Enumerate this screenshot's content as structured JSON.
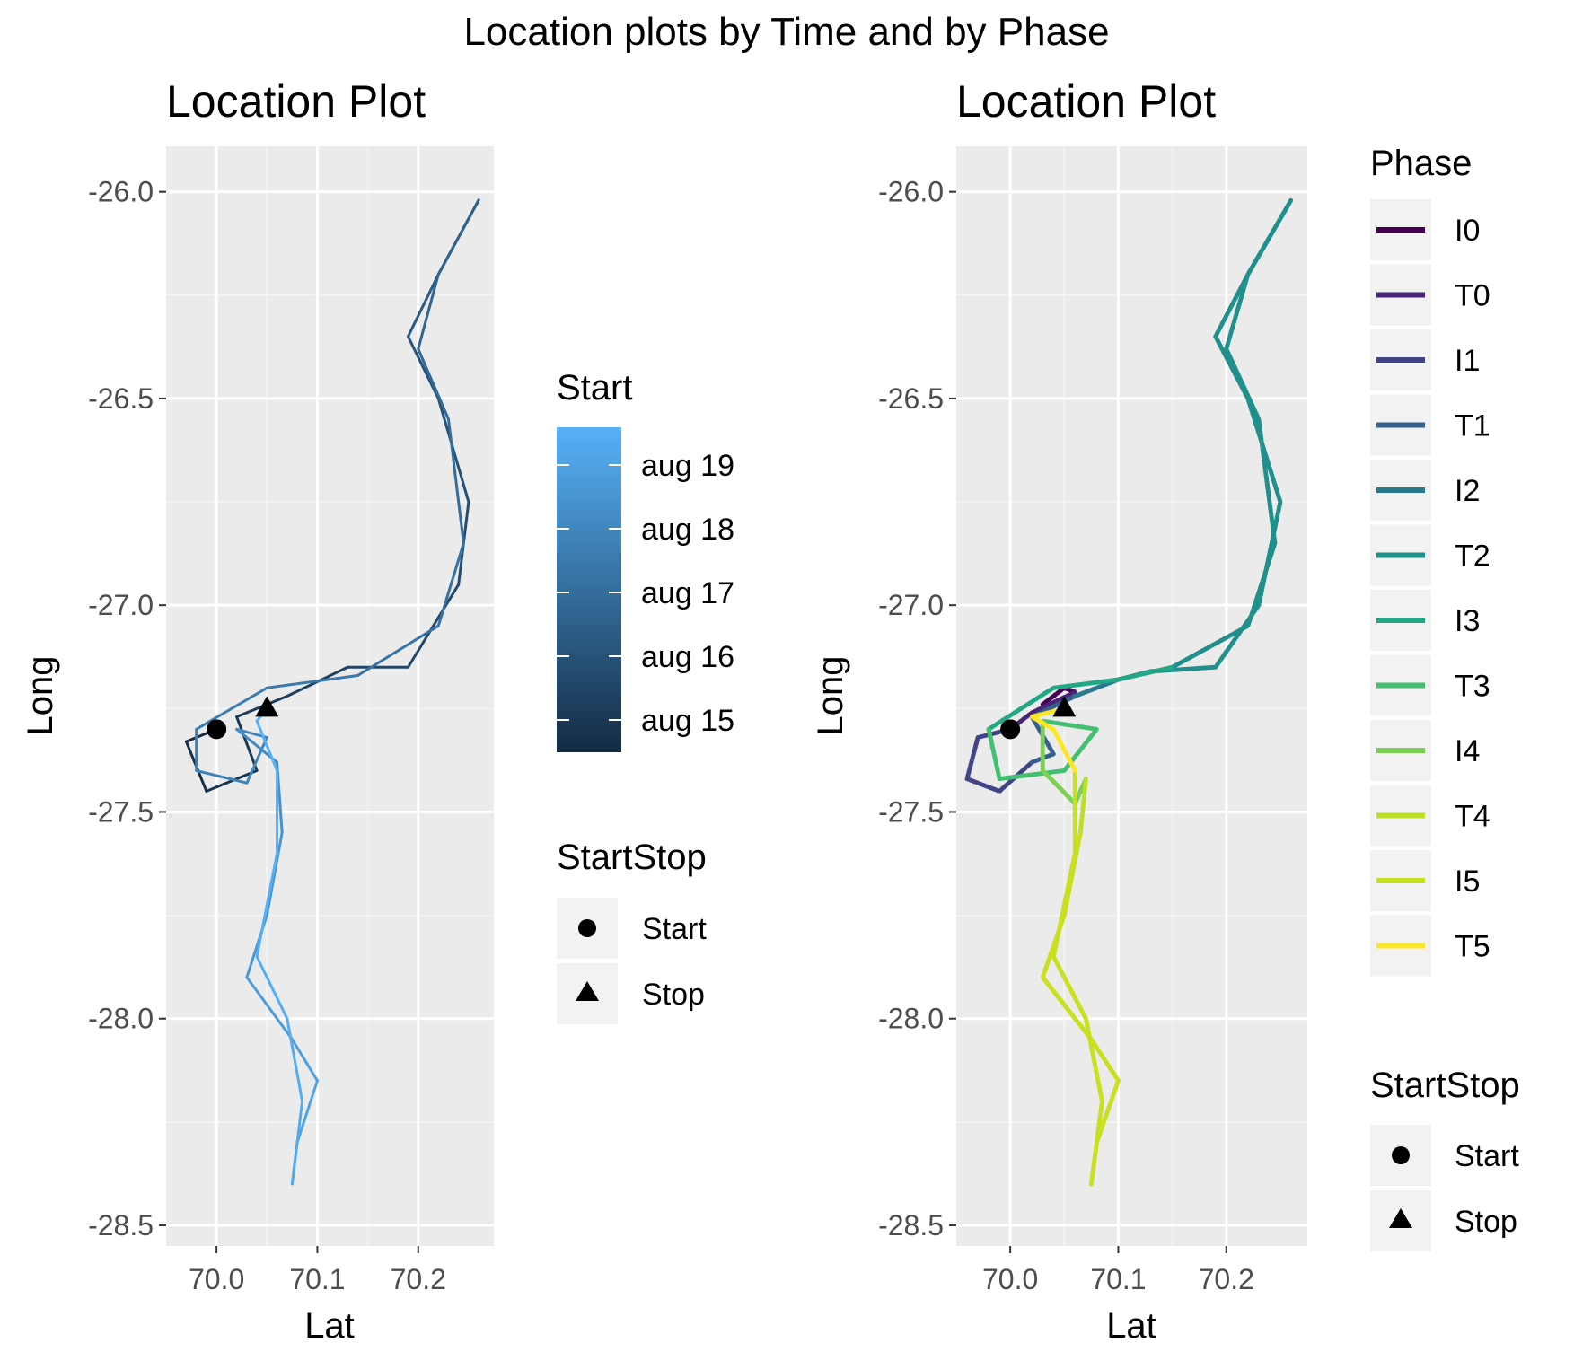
{
  "figure": {
    "title": "Location plots by Time and by Phase"
  },
  "chart_data": [
    {
      "type": "line",
      "title": "Location Plot",
      "xlabel": "Lat",
      "ylabel": "Long",
      "xlim": [
        69.95,
        70.275
      ],
      "ylim": [
        -28.55,
        -25.89
      ],
      "x_ticks": [
        70.0,
        70.1,
        70.2
      ],
      "x_tick_labels": [
        "70.0",
        "70.1",
        "70.2"
      ],
      "y_ticks": [
        -26.0,
        -26.5,
        -27.0,
        -27.5,
        -28.0,
        -28.5
      ],
      "y_tick_labels": [
        "-26.0",
        "-26.5",
        "-27.0",
        "-27.5",
        "-28.0",
        "-28.5"
      ],
      "grid": true,
      "color_by": "Start",
      "colorbar": {
        "title": "Start",
        "labels": [
          "aug 19",
          "aug 18",
          "aug 17",
          "aug 16",
          "aug 15"
        ],
        "low_color": "#132b43",
        "high_color": "#56b1f7"
      },
      "track": [
        {
          "x": 70.0,
          "y": -27.3,
          "t": 0.0
        },
        {
          "x": 69.97,
          "y": -27.33,
          "t": 0.03
        },
        {
          "x": 69.99,
          "y": -27.45,
          "t": 0.06
        },
        {
          "x": 70.04,
          "y": -27.4,
          "t": 0.09
        },
        {
          "x": 70.02,
          "y": -27.27,
          "t": 0.12
        },
        {
          "x": 70.07,
          "y": -27.22,
          "t": 0.15
        },
        {
          "x": 70.13,
          "y": -27.15,
          "t": 0.18
        },
        {
          "x": 70.19,
          "y": -27.15,
          "t": 0.21
        },
        {
          "x": 70.24,
          "y": -26.95,
          "t": 0.24
        },
        {
          "x": 70.25,
          "y": -26.75,
          "t": 0.27
        },
        {
          "x": 70.22,
          "y": -26.5,
          "t": 0.3
        },
        {
          "x": 70.19,
          "y": -26.35,
          "t": 0.33
        },
        {
          "x": 70.22,
          "y": -26.2,
          "t": 0.36
        },
        {
          "x": 70.26,
          "y": -26.02,
          "t": 0.39
        },
        {
          "x": 70.22,
          "y": -26.2,
          "t": 0.42
        },
        {
          "x": 70.2,
          "y": -26.38,
          "t": 0.45
        },
        {
          "x": 70.23,
          "y": -26.55,
          "t": 0.48
        },
        {
          "x": 70.245,
          "y": -26.85,
          "t": 0.51
        },
        {
          "x": 70.22,
          "y": -27.05,
          "t": 0.54
        },
        {
          "x": 70.14,
          "y": -27.17,
          "t": 0.57
        },
        {
          "x": 70.05,
          "y": -27.2,
          "t": 0.6
        },
        {
          "x": 69.98,
          "y": -27.3,
          "t": 0.62
        },
        {
          "x": 69.98,
          "y": -27.4,
          "t": 0.64
        },
        {
          "x": 70.03,
          "y": -27.43,
          "t": 0.66
        },
        {
          "x": 70.05,
          "y": -27.32,
          "t": 0.68
        },
        {
          "x": 70.02,
          "y": -27.3,
          "t": 0.71
        },
        {
          "x": 70.06,
          "y": -27.38,
          "t": 0.74
        },
        {
          "x": 70.065,
          "y": -27.55,
          "t": 0.77
        },
        {
          "x": 70.05,
          "y": -27.75,
          "t": 0.8
        },
        {
          "x": 70.03,
          "y": -27.9,
          "t": 0.83
        },
        {
          "x": 70.075,
          "y": -28.05,
          "t": 0.86
        },
        {
          "x": 70.1,
          "y": -28.15,
          "t": 0.89
        },
        {
          "x": 70.08,
          "y": -28.3,
          "t": 0.92
        },
        {
          "x": 70.075,
          "y": -28.4,
          "t": 0.95
        },
        {
          "x": 70.085,
          "y": -28.2,
          "t": 0.96
        },
        {
          "x": 70.07,
          "y": -28.0,
          "t": 0.97
        },
        {
          "x": 70.04,
          "y": -27.85,
          "t": 0.98
        },
        {
          "x": 70.06,
          "y": -27.6,
          "t": 0.985
        },
        {
          "x": 70.06,
          "y": -27.4,
          "t": 0.99
        },
        {
          "x": 70.04,
          "y": -27.28,
          "t": 0.995
        },
        {
          "x": 70.05,
          "y": -27.25,
          "t": 1.0
        }
      ],
      "markers": [
        {
          "label": "Start",
          "shape": "circle",
          "x": 70.0,
          "y": -27.3
        },
        {
          "label": "Stop",
          "shape": "triangle",
          "x": 70.05,
          "y": -27.25
        }
      ],
      "legend": {
        "title": "StartStop",
        "items": [
          "Start",
          "Stop"
        ],
        "position": "right"
      }
    },
    {
      "type": "line",
      "title": "Location Plot",
      "xlabel": "Lat",
      "ylabel": "Long",
      "xlim": [
        69.95,
        70.275
      ],
      "ylim": [
        -28.55,
        -25.89
      ],
      "x_ticks": [
        70.0,
        70.1,
        70.2
      ],
      "x_tick_labels": [
        "70.0",
        "70.1",
        "70.2"
      ],
      "y_ticks": [
        -26.0,
        -26.5,
        -27.0,
        -27.5,
        -28.0,
        -28.5
      ],
      "y_tick_labels": [
        "-26.0",
        "-26.5",
        "-27.0",
        "-27.5",
        "-28.0",
        "-28.5"
      ],
      "grid": true,
      "color_by": "Phase",
      "phases": [
        {
          "name": "I0",
          "color": "#440154"
        },
        {
          "name": "T0",
          "color": "#482576"
        },
        {
          "name": "I1",
          "color": "#414487"
        },
        {
          "name": "T1",
          "color": "#35608d"
        },
        {
          "name": "I2",
          "color": "#2a788e"
        },
        {
          "name": "T2",
          "color": "#21908c"
        },
        {
          "name": "I3",
          "color": "#22a884"
        },
        {
          "name": "T3",
          "color": "#43bf71"
        },
        {
          "name": "I4",
          "color": "#7ad151"
        },
        {
          "name": "T4",
          "color": "#bbdf27"
        },
        {
          "name": "I5",
          "color": "#c8e020"
        },
        {
          "name": "T5",
          "color": "#fde725"
        }
      ],
      "tracks": [
        {
          "phase": "I0",
          "points": [
            [
              70.03,
              -27.24
            ],
            [
              70.05,
              -27.2
            ],
            [
              70.06,
              -27.21
            ]
          ]
        },
        {
          "phase": "T0",
          "points": [
            [
              70.06,
              -27.21
            ],
            [
              70.02,
              -27.26
            ],
            [
              70.0,
              -27.3
            ]
          ]
        },
        {
          "phase": "I1",
          "points": [
            [
              70.0,
              -27.3
            ],
            [
              69.97,
              -27.32
            ],
            [
              69.96,
              -27.42
            ],
            [
              69.99,
              -27.45
            ],
            [
              70.02,
              -27.38
            ]
          ]
        },
        {
          "phase": "T1",
          "points": [
            [
              70.02,
              -27.38
            ],
            [
              70.04,
              -27.36
            ],
            [
              70.02,
              -27.27
            ],
            [
              70.06,
              -27.22
            ]
          ]
        },
        {
          "phase": "I2",
          "points": [
            [
              70.06,
              -27.22
            ],
            [
              70.1,
              -27.18
            ],
            [
              70.13,
              -27.16
            ]
          ]
        },
        {
          "phase": "T2",
          "points": [
            [
              70.13,
              -27.16
            ],
            [
              70.19,
              -27.15
            ],
            [
              70.23,
              -27.0
            ],
            [
              70.25,
              -26.75
            ],
            [
              70.22,
              -26.5
            ],
            [
              70.19,
              -26.35
            ],
            [
              70.22,
              -26.2
            ],
            [
              70.26,
              -26.02
            ],
            [
              70.22,
              -26.2
            ],
            [
              70.2,
              -26.38
            ],
            [
              70.23,
              -26.55
            ],
            [
              70.245,
              -26.85
            ],
            [
              70.22,
              -27.05
            ],
            [
              70.15,
              -27.15
            ]
          ]
        },
        {
          "phase": "I3",
          "points": [
            [
              70.15,
              -27.15
            ],
            [
              70.1,
              -27.18
            ],
            [
              70.04,
              -27.2
            ],
            [
              69.98,
              -27.3
            ]
          ]
        },
        {
          "phase": "T3",
          "points": [
            [
              69.98,
              -27.3
            ],
            [
              69.99,
              -27.42
            ],
            [
              70.05,
              -27.4
            ],
            [
              70.08,
              -27.3
            ],
            [
              70.03,
              -27.28
            ]
          ]
        },
        {
          "phase": "I4",
          "points": [
            [
              70.03,
              -27.28
            ],
            [
              70.03,
              -27.4
            ],
            [
              70.06,
              -27.48
            ],
            [
              70.07,
              -27.42
            ]
          ]
        },
        {
          "phase": "T4",
          "points": [
            [
              70.07,
              -27.42
            ],
            [
              70.065,
              -27.55
            ]
          ]
        },
        {
          "phase": "I5",
          "points": [
            [
              70.065,
              -27.55
            ],
            [
              70.05,
              -27.75
            ],
            [
              70.03,
              -27.9
            ],
            [
              70.075,
              -28.05
            ],
            [
              70.1,
              -28.15
            ],
            [
              70.08,
              -28.3
            ],
            [
              70.075,
              -28.4
            ],
            [
              70.085,
              -28.2
            ],
            [
              70.07,
              -28.0
            ],
            [
              70.04,
              -27.85
            ],
            [
              70.06,
              -27.6
            ],
            [
              70.06,
              -27.4
            ]
          ]
        },
        {
          "phase": "T5",
          "points": [
            [
              70.06,
              -27.4
            ],
            [
              70.04,
              -27.3
            ],
            [
              70.02,
              -27.27
            ],
            [
              70.05,
              -27.25
            ]
          ]
        }
      ],
      "markers": [
        {
          "label": "Start",
          "shape": "circle",
          "x": 70.0,
          "y": -27.3
        },
        {
          "label": "Stop",
          "shape": "triangle",
          "x": 70.05,
          "y": -27.25
        }
      ],
      "legend": {
        "title": "StartStop",
        "items": [
          "Start",
          "Stop"
        ],
        "position": "right"
      },
      "phase_legend": {
        "title": "Phase",
        "position": "right"
      }
    }
  ]
}
